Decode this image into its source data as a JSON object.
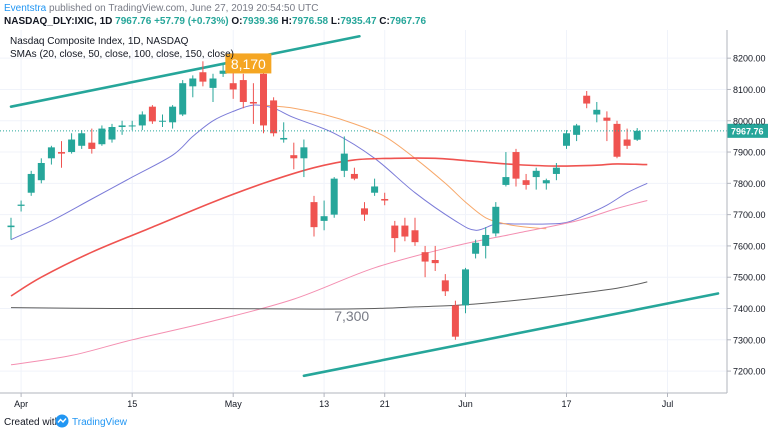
{
  "header": {
    "brand": "Eventstra",
    "published": "published on TradingView.com, June 27, 2019 20:54:50 UTC",
    "symbol": "NASDAQ_DLY:IXIC, 1D",
    "price": "7967.76",
    "change": "+57.79 (+0.73%)",
    "o_label": "O:",
    "o_value": "7939.36",
    "h_label": "H:",
    "h_value": "7976.58",
    "l_label": "L:",
    "l_value": "7935.47",
    "c_label": "C:",
    "c_value": "7967.76"
  },
  "footer": {
    "created_with": "Created with",
    "tv_name": "TradingView"
  },
  "colors": {
    "up": "#26a69a",
    "down": "#ef5350",
    "sma20": "#7b7bd8",
    "sma50": "#f7a86a",
    "sma100": "#ef5350",
    "sma150": "#f48fb1",
    "sma200": "#5d5d5d",
    "trend": "#26a69a",
    "callout": "#f5a623",
    "price_label": "#26a69a"
  },
  "chart_data": {
    "type": "candlestick",
    "title": "Nasdaq Composite Index, 1D, NASDAQ",
    "subtitle": "SMAs (20, close, 50, close, 100, close, 150, close)",
    "ylim": [
      7130,
      8290
    ],
    "y_ticks": [
      7200,
      7300,
      7400,
      7500,
      7600,
      7700,
      7800,
      7900,
      8000,
      8100,
      8200
    ],
    "y_tick_labels": [
      "7200.00",
      "7300.00",
      "7400.00",
      "7500.00",
      "7600.00",
      "7700.00",
      "7800.00",
      "7900.00",
      "8000.00",
      "8100.00",
      "8200.00"
    ],
    "x_tick_labels": [
      {
        "i": 1,
        "label": "Apr"
      },
      {
        "i": 12,
        "label": "15"
      },
      {
        "i": 22,
        "label": "May"
      },
      {
        "i": 31,
        "label": "13"
      },
      {
        "i": 37,
        "label": "21"
      },
      {
        "i": 45,
        "label": "Jun"
      },
      {
        "i": 55,
        "label": "17"
      },
      {
        "i": 65,
        "label": "Jul"
      }
    ],
    "x_count": 70,
    "last_price": 7967.76,
    "last_price_label": "7967.76",
    "candles": [
      {
        "i": 0,
        "o": 7660,
        "h": 7690,
        "l": 7620,
        "c": 7665
      },
      {
        "i": 1,
        "o": 7728,
        "h": 7745,
        "l": 7710,
        "c": 7732
      },
      {
        "i": 2,
        "o": 7770,
        "h": 7840,
        "l": 7760,
        "c": 7830
      },
      {
        "i": 3,
        "o": 7810,
        "h": 7880,
        "l": 7800,
        "c": 7865
      },
      {
        "i": 4,
        "o": 7880,
        "h": 7920,
        "l": 7860,
        "c": 7915
      },
      {
        "i": 5,
        "o": 7900,
        "h": 7935,
        "l": 7850,
        "c": 7895
      },
      {
        "i": 6,
        "o": 7900,
        "h": 7960,
        "l": 7895,
        "c": 7940
      },
      {
        "i": 7,
        "o": 7920,
        "h": 7970,
        "l": 7910,
        "c": 7960
      },
      {
        "i": 8,
        "o": 7930,
        "h": 7975,
        "l": 7895,
        "c": 7910
      },
      {
        "i": 9,
        "o": 7925,
        "h": 7985,
        "l": 7920,
        "c": 7975
      },
      {
        "i": 10,
        "o": 7940,
        "h": 7990,
        "l": 7930,
        "c": 7980
      },
      {
        "i": 11,
        "o": 7980,
        "h": 8000,
        "l": 7955,
        "c": 7985
      },
      {
        "i": 12,
        "o": 7985,
        "h": 8000,
        "l": 7970,
        "c": 7985
      },
      {
        "i": 13,
        "o": 7985,
        "h": 8030,
        "l": 7970,
        "c": 8020
      },
      {
        "i": 14,
        "o": 8045,
        "h": 8050,
        "l": 7990,
        "c": 7998
      },
      {
        "i": 15,
        "o": 7998,
        "h": 8020,
        "l": 7980,
        "c": 8000
      },
      {
        "i": 16,
        "o": 7995,
        "h": 8050,
        "l": 7975,
        "c": 8045
      },
      {
        "i": 17,
        "o": 8020,
        "h": 8130,
        "l": 8015,
        "c": 8120
      },
      {
        "i": 18,
        "o": 8110,
        "h": 8145,
        "l": 8075,
        "c": 8135
      },
      {
        "i": 19,
        "o": 8155,
        "h": 8190,
        "l": 8110,
        "c": 8125
      },
      {
        "i": 20,
        "o": 8105,
        "h": 8150,
        "l": 8060,
        "c": 8135
      },
      {
        "i": 21,
        "o": 8150,
        "h": 8185,
        "l": 8140,
        "c": 8160
      },
      {
        "i": 22,
        "o": 8120,
        "h": 8175,
        "l": 8070,
        "c": 8100
      },
      {
        "i": 23,
        "o": 8130,
        "h": 8150,
        "l": 8040,
        "c": 8060
      },
      {
        "i": 24,
        "o": 8060,
        "h": 8120,
        "l": 7990,
        "c": 8055
      },
      {
        "i": 25,
        "o": 8150,
        "h": 8170,
        "l": 7960,
        "c": 7985
      },
      {
        "i": 26,
        "o": 8065,
        "h": 8075,
        "l": 7950,
        "c": 7960
      },
      {
        "i": 27,
        "o": 7940,
        "h": 7995,
        "l": 7930,
        "c": 7945
      },
      {
        "i": 28,
        "o": 7890,
        "h": 7930,
        "l": 7845,
        "c": 7880
      },
      {
        "i": 29,
        "o": 7880,
        "h": 7940,
        "l": 7820,
        "c": 7915
      },
      {
        "i": 30,
        "o": 7740,
        "h": 7760,
        "l": 7630,
        "c": 7660
      },
      {
        "i": 31,
        "o": 7680,
        "h": 7745,
        "l": 7650,
        "c": 7695
      },
      {
        "i": 32,
        "o": 7700,
        "h": 7820,
        "l": 7690,
        "c": 7815
      },
      {
        "i": 33,
        "o": 7840,
        "h": 7950,
        "l": 7820,
        "c": 7895
      },
      {
        "i": 34,
        "o": 7830,
        "h": 7850,
        "l": 7810,
        "c": 7815
      },
      {
        "i": 35,
        "o": 7720,
        "h": 7740,
        "l": 7680,
        "c": 7700
      },
      {
        "i": 36,
        "o": 7770,
        "h": 7815,
        "l": 7760,
        "c": 7790
      },
      {
        "i": 37,
        "o": 7750,
        "h": 7770,
        "l": 7730,
        "c": 7745
      },
      {
        "i": 38,
        "o": 7665,
        "h": 7680,
        "l": 7580,
        "c": 7625
      },
      {
        "i": 39,
        "o": 7665,
        "h": 7690,
        "l": 7615,
        "c": 7630
      },
      {
        "i": 40,
        "o": 7650,
        "h": 7690,
        "l": 7600,
        "c": 7612
      },
      {
        "i": 41,
        "o": 7580,
        "h": 7600,
        "l": 7500,
        "c": 7550
      },
      {
        "i": 42,
        "o": 7555,
        "h": 7600,
        "l": 7520,
        "c": 7545
      },
      {
        "i": 43,
        "o": 7490,
        "h": 7510,
        "l": 7440,
        "c": 7455
      },
      {
        "i": 44,
        "o": 7410,
        "h": 7425,
        "l": 7300,
        "c": 7310
      },
      {
        "i": 45,
        "o": 7410,
        "h": 7530,
        "l": 7385,
        "c": 7525
      },
      {
        "i": 46,
        "o": 7575,
        "h": 7620,
        "l": 7560,
        "c": 7610
      },
      {
        "i": 47,
        "o": 7600,
        "h": 7660,
        "l": 7560,
        "c": 7635
      },
      {
        "i": 48,
        "o": 7640,
        "h": 7740,
        "l": 7630,
        "c": 7725
      },
      {
        "i": 49,
        "o": 7795,
        "h": 7900,
        "l": 7790,
        "c": 7820
      },
      {
        "i": 50,
        "o": 7900,
        "h": 7910,
        "l": 7790,
        "c": 7815
      },
      {
        "i": 51,
        "o": 7810,
        "h": 7830,
        "l": 7780,
        "c": 7795
      },
      {
        "i": 52,
        "o": 7820,
        "h": 7850,
        "l": 7780,
        "c": 7840
      },
      {
        "i": 53,
        "o": 7800,
        "h": 7815,
        "l": 7780,
        "c": 7810
      },
      {
        "i": 54,
        "o": 7830,
        "h": 7865,
        "l": 7810,
        "c": 7850
      },
      {
        "i": 55,
        "o": 7920,
        "h": 7970,
        "l": 7910,
        "c": 7960
      },
      {
        "i": 56,
        "o": 7955,
        "h": 7990,
        "l": 7935,
        "c": 7985
      },
      {
        "i": 57,
        "o": 8080,
        "h": 8095,
        "l": 8040,
        "c": 8055
      },
      {
        "i": 58,
        "o": 8020,
        "h": 8060,
        "l": 7995,
        "c": 8035
      },
      {
        "i": 59,
        "o": 8010,
        "h": 8030,
        "l": 7935,
        "c": 8000
      },
      {
        "i": 60,
        "o": 7990,
        "h": 8000,
        "l": 7880,
        "c": 7885
      },
      {
        "i": 61,
        "o": 7940,
        "h": 7975,
        "l": 7910,
        "c": 7920
      },
      {
        "i": 62,
        "o": 7939.36,
        "h": 7976.58,
        "l": 7935.47,
        "c": 7967.76
      }
    ],
    "series": [
      {
        "name": "SMA 20",
        "color_key": "sma20",
        "points": [
          [
            0,
            7620
          ],
          [
            4,
            7680
          ],
          [
            8,
            7750
          ],
          [
            12,
            7820
          ],
          [
            16,
            7890
          ],
          [
            18,
            7950
          ],
          [
            20,
            8000
          ],
          [
            22,
            8030
          ],
          [
            24,
            8050
          ],
          [
            26,
            8040
          ],
          [
            28,
            8010
          ],
          [
            32,
            7960
          ],
          [
            36,
            7880
          ],
          [
            40,
            7770
          ],
          [
            44,
            7680
          ],
          [
            46,
            7650
          ],
          [
            48,
            7670
          ],
          [
            50,
            7670
          ],
          [
            53,
            7670
          ],
          [
            55,
            7675
          ],
          [
            57,
            7700
          ],
          [
            59,
            7730
          ],
          [
            61,
            7770
          ],
          [
            63,
            7800
          ]
        ]
      },
      {
        "name": "SMA 50",
        "color_key": "sma50",
        "points": [
          [
            25,
            8050
          ],
          [
            28,
            8040
          ],
          [
            31,
            8020
          ],
          [
            34,
            7990
          ],
          [
            37,
            7950
          ],
          [
            40,
            7880
          ],
          [
            43,
            7800
          ],
          [
            45,
            7740
          ],
          [
            47,
            7690
          ],
          [
            49,
            7670
          ],
          [
            51,
            7660
          ],
          [
            53,
            7655
          ]
        ]
      },
      {
        "name": "SMA 100",
        "color_key": "sma100",
        "points": [
          [
            0,
            7440
          ],
          [
            3,
            7500
          ],
          [
            8,
            7580
          ],
          [
            14,
            7660
          ],
          [
            20,
            7740
          ],
          [
            25,
            7800
          ],
          [
            30,
            7850
          ],
          [
            34,
            7875
          ],
          [
            38,
            7880
          ],
          [
            42,
            7880
          ],
          [
            46,
            7870
          ],
          [
            50,
            7860
          ],
          [
            54,
            7855
          ],
          [
            58,
            7858
          ],
          [
            60,
            7862
          ],
          [
            63,
            7860
          ]
        ]
      },
      {
        "name": "SMA 150",
        "color_key": "sma150",
        "points": [
          [
            0,
            7220
          ],
          [
            6,
            7250
          ],
          [
            12,
            7300
          ],
          [
            20,
            7360
          ],
          [
            28,
            7430
          ],
          [
            36,
            7530
          ],
          [
            44,
            7600
          ],
          [
            50,
            7640
          ],
          [
            56,
            7680
          ],
          [
            60,
            7720
          ],
          [
            63,
            7745
          ]
        ]
      },
      {
        "name": "SMA 200",
        "color_key": "sma200",
        "points": [
          [
            0,
            7403
          ],
          [
            10,
            7400
          ],
          [
            20,
            7400
          ],
          [
            30,
            7398
          ],
          [
            36,
            7400
          ],
          [
            40,
            7405
          ],
          [
            44,
            7410
          ],
          [
            48,
            7420
          ],
          [
            54,
            7440
          ],
          [
            60,
            7465
          ],
          [
            63,
            7485
          ]
        ]
      }
    ],
    "trendlines": [
      {
        "from": [
          0,
          8045
        ],
        "to": [
          34.5,
          8270
        ]
      },
      {
        "from": [
          29,
          7185
        ],
        "to": [
          70,
          7448
        ]
      }
    ],
    "annotations": [
      {
        "text": "8,170",
        "i": 23.5,
        "y": 8180,
        "style": "callout"
      },
      {
        "text": "7,300",
        "i": 32,
        "y": 7360,
        "style": "plain"
      }
    ]
  }
}
